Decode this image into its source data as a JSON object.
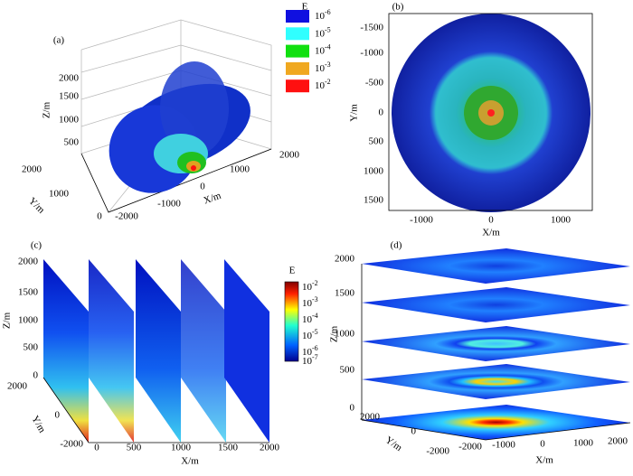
{
  "panels": [
    {
      "label": "(a)",
      "z_label": "Z/m",
      "y_label": "Y/m",
      "x_label": "X/m",
      "z_ticks": [
        "500",
        "1000",
        "1500",
        "2000"
      ],
      "y_ticks": [
        "0",
        "1000",
        "2000"
      ],
      "x_ticks": [
        "-2000",
        "-1000",
        "0",
        "1000",
        "2000"
      ],
      "legend": {
        "title": "E",
        "entries": [
          {
            "base": "10",
            "exp": "-6",
            "color": "#1010e0"
          },
          {
            "base": "10",
            "exp": "-5",
            "color": "#30ffff"
          },
          {
            "base": "10",
            "exp": "-4",
            "color": "#10e010"
          },
          {
            "base": "10",
            "exp": "-3",
            "color": "#f0a820"
          },
          {
            "base": "10",
            "exp": "-2",
            "color": "#ff1010"
          }
        ]
      }
    },
    {
      "label": "(b)",
      "y_label": "Y/m",
      "x_label": "X/m",
      "y_ticks": [
        "-1500",
        "-1000",
        "-500",
        "0",
        "500",
        "1000",
        "1500"
      ],
      "x_ticks": [
        "-1000",
        "0",
        "1000"
      ]
    },
    {
      "label": "(c)",
      "z_label": "Z/m",
      "y_label": "Y/m",
      "x_label": "X/m",
      "z_ticks": [
        "0",
        "500",
        "1000",
        "1500",
        "2000"
      ],
      "y_ticks": [
        "-2000",
        "0",
        "2000"
      ],
      "x_ticks": [
        "0",
        "500",
        "1000",
        "1500",
        "2000"
      ],
      "colorbar": {
        "title": "E",
        "ticks": [
          {
            "base": "10",
            "exp": "-2"
          },
          {
            "base": "10",
            "exp": "-3"
          },
          {
            "base": "10",
            "exp": "-4"
          },
          {
            "base": "10",
            "exp": "-5"
          },
          {
            "base": "10",
            "exp": "-6"
          },
          {
            "base": "10",
            "exp": "-7"
          }
        ]
      }
    },
    {
      "label": "(d)",
      "z_label": "Z/m",
      "y_label": "Y/m",
      "x_label": "X/m",
      "z_ticks": [
        "0",
        "500",
        "1000",
        "1500",
        "2000"
      ],
      "y_ticks": [
        "-2000",
        "0",
        "2000"
      ],
      "x_ticks": [
        "-2000",
        "-1000",
        "0",
        "1000",
        "2000"
      ]
    }
  ]
}
